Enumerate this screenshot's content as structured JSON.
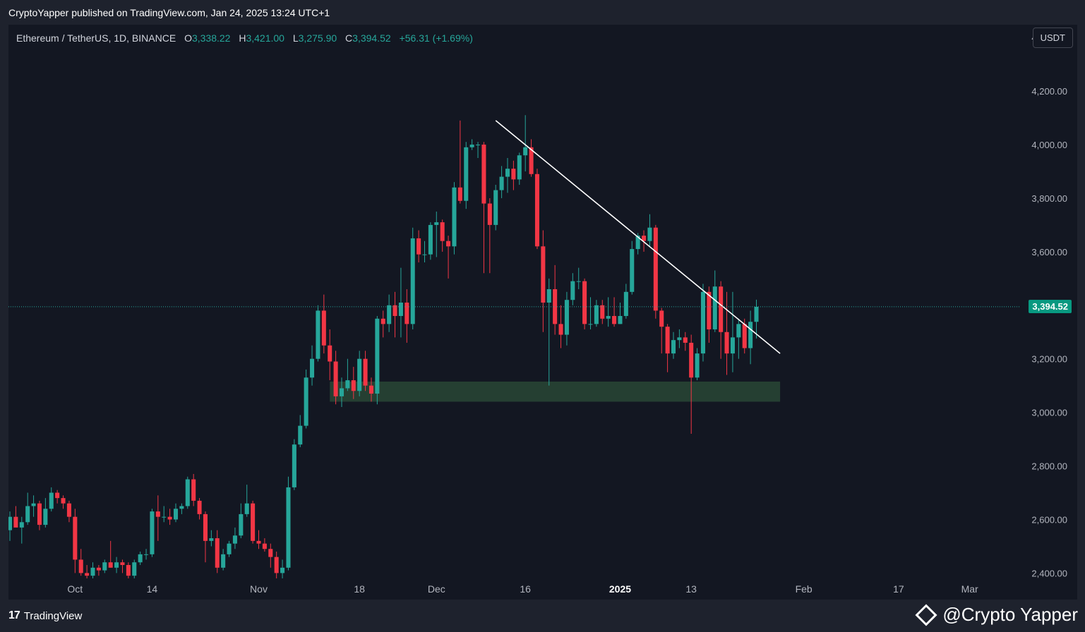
{
  "header": {
    "published": "CryptoYapper published on TradingView.com, Jan 24, 2025 13:24 UTC+1"
  },
  "legend": {
    "symbol": "Ethereum / TetherUS, 1D, BINANCE",
    "o_label": "O",
    "o_value": "3,338.22",
    "h_label": "H",
    "h_value": "3,421.00",
    "l_label": "L",
    "l_value": "3,275.90",
    "c_label": "C",
    "c_value": "3,394.52",
    "change": "+56.31 (+1.69%)"
  },
  "currency_button": "USDT",
  "footer": {
    "brand": "TradingView",
    "watermark": "@Crypto Yapper"
  },
  "colors": {
    "up": "#26a69a",
    "down": "#f23645",
    "background": "#131722",
    "zone": "#2b4a37",
    "trendline": "#ffffff"
  },
  "chart_data": {
    "type": "candlestick",
    "ylim": [
      2380,
      4440
    ],
    "yticks": [
      2400,
      2600,
      2800,
      3000,
      3200,
      3400,
      3600,
      3800,
      4000,
      4200,
      4400
    ],
    "ytick_labels": [
      "2,400.00",
      "2,600.00",
      "2,800.00",
      "3,000.00",
      "3,200.00",
      "3,400.00",
      "3,600.00",
      "3,800.00",
      "4,000.00",
      "4,200.00",
      "4,400.00"
    ],
    "xlim": [
      "2024-09-20",
      "2025-03-07"
    ],
    "xticks": [
      {
        "date": "2024-10-01",
        "label": "Oct",
        "bold": false
      },
      {
        "date": "2024-10-14",
        "label": "14",
        "bold": false
      },
      {
        "date": "2024-11-01",
        "label": "Nov",
        "bold": false
      },
      {
        "date": "2024-11-18",
        "label": "18",
        "bold": false
      },
      {
        "date": "2024-12-01",
        "label": "Dec",
        "bold": false
      },
      {
        "date": "2024-12-16",
        "label": "16",
        "bold": false
      },
      {
        "date": "2025-01-01",
        "label": "2025",
        "bold": true
      },
      {
        "date": "2025-01-13",
        "label": "13",
        "bold": false
      },
      {
        "date": "2025-02-01",
        "label": "Feb",
        "bold": false
      },
      {
        "date": "2025-02-17",
        "label": "17",
        "bold": false
      },
      {
        "date": "2025-03-01",
        "label": "Mar",
        "bold": false
      }
    ],
    "last_price": 3394.52,
    "last_price_label": "3,394.52",
    "support_zone": {
      "start": "2024-11-13",
      "end": "2025-01-28",
      "low": 3040,
      "high": 3115
    },
    "trendline": {
      "start": {
        "date": "2024-12-11",
        "price": 4090
      },
      "end": {
        "date": "2025-01-28",
        "price": 3220
      }
    },
    "candles": [
      {
        "date": "2024-09-20",
        "o": 2560,
        "h": 2630,
        "l": 2520,
        "c": 2610
      },
      {
        "date": "2024-09-21",
        "o": 2610,
        "h": 2650,
        "l": 2580,
        "c": 2570
      },
      {
        "date": "2024-09-22",
        "o": 2570,
        "h": 2610,
        "l": 2510,
        "c": 2590
      },
      {
        "date": "2024-09-23",
        "o": 2590,
        "h": 2700,
        "l": 2580,
        "c": 2650
      },
      {
        "date": "2024-09-24",
        "o": 2650,
        "h": 2690,
        "l": 2610,
        "c": 2660
      },
      {
        "date": "2024-09-25",
        "o": 2660,
        "h": 2670,
        "l": 2560,
        "c": 2580
      },
      {
        "date": "2024-09-26",
        "o": 2580,
        "h": 2680,
        "l": 2570,
        "c": 2640
      },
      {
        "date": "2024-09-27",
        "o": 2640,
        "h": 2720,
        "l": 2630,
        "c": 2700
      },
      {
        "date": "2024-09-28",
        "o": 2700,
        "h": 2710,
        "l": 2660,
        "c": 2680
      },
      {
        "date": "2024-09-29",
        "o": 2680,
        "h": 2690,
        "l": 2640,
        "c": 2660
      },
      {
        "date": "2024-09-30",
        "o": 2660,
        "h": 2670,
        "l": 2590,
        "c": 2610
      },
      {
        "date": "2024-10-01",
        "o": 2610,
        "h": 2640,
        "l": 2400,
        "c": 2450
      },
      {
        "date": "2024-10-02",
        "o": 2450,
        "h": 2490,
        "l": 2390,
        "c": 2400
      },
      {
        "date": "2024-10-03",
        "o": 2400,
        "h": 2430,
        "l": 2380,
        "c": 2390
      },
      {
        "date": "2024-10-04",
        "o": 2390,
        "h": 2440,
        "l": 2380,
        "c": 2420
      },
      {
        "date": "2024-10-05",
        "o": 2420,
        "h": 2430,
        "l": 2390,
        "c": 2410
      },
      {
        "date": "2024-10-06",
        "o": 2410,
        "h": 2450,
        "l": 2400,
        "c": 2440
      },
      {
        "date": "2024-10-07",
        "o": 2440,
        "h": 2520,
        "l": 2420,
        "c": 2420
      },
      {
        "date": "2024-10-08",
        "o": 2420,
        "h": 2460,
        "l": 2400,
        "c": 2440
      },
      {
        "date": "2024-10-09",
        "o": 2440,
        "h": 2450,
        "l": 2400,
        "c": 2430
      },
      {
        "date": "2024-10-10",
        "o": 2430,
        "h": 2440,
        "l": 2380,
        "c": 2390
      },
      {
        "date": "2024-10-11",
        "o": 2390,
        "h": 2450,
        "l": 2380,
        "c": 2440
      },
      {
        "date": "2024-10-12",
        "o": 2440,
        "h": 2480,
        "l": 2430,
        "c": 2470
      },
      {
        "date": "2024-10-13",
        "o": 2470,
        "h": 2490,
        "l": 2450,
        "c": 2470
      },
      {
        "date": "2024-10-14",
        "o": 2470,
        "h": 2640,
        "l": 2460,
        "c": 2630
      },
      {
        "date": "2024-10-15",
        "o": 2630,
        "h": 2690,
        "l": 2520,
        "c": 2610
      },
      {
        "date": "2024-10-16",
        "o": 2610,
        "h": 2650,
        "l": 2590,
        "c": 2610
      },
      {
        "date": "2024-10-17",
        "o": 2610,
        "h": 2640,
        "l": 2580,
        "c": 2600
      },
      {
        "date": "2024-10-18",
        "o": 2600,
        "h": 2660,
        "l": 2590,
        "c": 2640
      },
      {
        "date": "2024-10-19",
        "o": 2640,
        "h": 2660,
        "l": 2620,
        "c": 2650
      },
      {
        "date": "2024-10-20",
        "o": 2650,
        "h": 2760,
        "l": 2640,
        "c": 2750
      },
      {
        "date": "2024-10-21",
        "o": 2750,
        "h": 2770,
        "l": 2650,
        "c": 2670
      },
      {
        "date": "2024-10-22",
        "o": 2670,
        "h": 2680,
        "l": 2600,
        "c": 2620
      },
      {
        "date": "2024-10-23",
        "o": 2620,
        "h": 2630,
        "l": 2440,
        "c": 2520
      },
      {
        "date": "2024-10-24",
        "o": 2520,
        "h": 2560,
        "l": 2500,
        "c": 2530
      },
      {
        "date": "2024-10-25",
        "o": 2530,
        "h": 2560,
        "l": 2400,
        "c": 2420
      },
      {
        "date": "2024-10-26",
        "o": 2420,
        "h": 2490,
        "l": 2410,
        "c": 2470
      },
      {
        "date": "2024-10-27",
        "o": 2470,
        "h": 2520,
        "l": 2460,
        "c": 2510
      },
      {
        "date": "2024-10-28",
        "o": 2510,
        "h": 2570,
        "l": 2490,
        "c": 2540
      },
      {
        "date": "2024-10-29",
        "o": 2540,
        "h": 2660,
        "l": 2530,
        "c": 2620
      },
      {
        "date": "2024-10-30",
        "o": 2620,
        "h": 2730,
        "l": 2610,
        "c": 2660
      },
      {
        "date": "2024-10-31",
        "o": 2660,
        "h": 2670,
        "l": 2510,
        "c": 2520
      },
      {
        "date": "2024-11-01",
        "o": 2520,
        "h": 2560,
        "l": 2490,
        "c": 2510
      },
      {
        "date": "2024-11-02",
        "o": 2510,
        "h": 2530,
        "l": 2480,
        "c": 2490
      },
      {
        "date": "2024-11-03",
        "o": 2490,
        "h": 2510,
        "l": 2420,
        "c": 2460
      },
      {
        "date": "2024-11-04",
        "o": 2460,
        "h": 2480,
        "l": 2380,
        "c": 2400
      },
      {
        "date": "2024-11-05",
        "o": 2400,
        "h": 2450,
        "l": 2380,
        "c": 2420
      },
      {
        "date": "2024-11-06",
        "o": 2420,
        "h": 2760,
        "l": 2410,
        "c": 2720
      },
      {
        "date": "2024-11-07",
        "o": 2720,
        "h": 2900,
        "l": 2710,
        "c": 2880
      },
      {
        "date": "2024-11-08",
        "o": 2880,
        "h": 2990,
        "l": 2870,
        "c": 2950
      },
      {
        "date": "2024-11-09",
        "o": 2950,
        "h": 3160,
        "l": 2940,
        "c": 3130
      },
      {
        "date": "2024-11-10",
        "o": 3130,
        "h": 3250,
        "l": 3100,
        "c": 3200
      },
      {
        "date": "2024-11-11",
        "o": 3200,
        "h": 3400,
        "l": 3190,
        "c": 3380
      },
      {
        "date": "2024-11-12",
        "o": 3380,
        "h": 3440,
        "l": 3220,
        "c": 3250
      },
      {
        "date": "2024-11-13",
        "o": 3250,
        "h": 3310,
        "l": 3120,
        "c": 3190
      },
      {
        "date": "2024-11-14",
        "o": 3190,
        "h": 3230,
        "l": 3030,
        "c": 3060
      },
      {
        "date": "2024-11-15",
        "o": 3060,
        "h": 3130,
        "l": 3020,
        "c": 3090
      },
      {
        "date": "2024-11-16",
        "o": 3090,
        "h": 3200,
        "l": 3080,
        "c": 3120
      },
      {
        "date": "2024-11-17",
        "o": 3120,
        "h": 3170,
        "l": 3050,
        "c": 3080
      },
      {
        "date": "2024-11-18",
        "o": 3080,
        "h": 3230,
        "l": 3060,
        "c": 3200
      },
      {
        "date": "2024-11-19",
        "o": 3200,
        "h": 3230,
        "l": 3080,
        "c": 3100
      },
      {
        "date": "2024-11-20",
        "o": 3100,
        "h": 3130,
        "l": 3040,
        "c": 3070
      },
      {
        "date": "2024-11-21",
        "o": 3070,
        "h": 3360,
        "l": 3030,
        "c": 3350
      },
      {
        "date": "2024-11-22",
        "o": 3350,
        "h": 3380,
        "l": 3280,
        "c": 3330
      },
      {
        "date": "2024-11-23",
        "o": 3330,
        "h": 3440,
        "l": 3300,
        "c": 3400
      },
      {
        "date": "2024-11-24",
        "o": 3400,
        "h": 3450,
        "l": 3280,
        "c": 3360
      },
      {
        "date": "2024-11-25",
        "o": 3360,
        "h": 3540,
        "l": 3280,
        "c": 3410
      },
      {
        "date": "2024-11-26",
        "o": 3410,
        "h": 3460,
        "l": 3260,
        "c": 3330
      },
      {
        "date": "2024-11-27",
        "o": 3330,
        "h": 3690,
        "l": 3310,
        "c": 3650
      },
      {
        "date": "2024-11-28",
        "o": 3650,
        "h": 3680,
        "l": 3560,
        "c": 3590
      },
      {
        "date": "2024-11-29",
        "o": 3590,
        "h": 3640,
        "l": 3560,
        "c": 3590
      },
      {
        "date": "2024-11-30",
        "o": 3590,
        "h": 3710,
        "l": 3570,
        "c": 3700
      },
      {
        "date": "2024-12-01",
        "o": 3700,
        "h": 3750,
        "l": 3580,
        "c": 3710
      },
      {
        "date": "2024-12-02",
        "o": 3710,
        "h": 3720,
        "l": 3600,
        "c": 3640
      },
      {
        "date": "2024-12-03",
        "o": 3640,
        "h": 3660,
        "l": 3500,
        "c": 3620
      },
      {
        "date": "2024-12-04",
        "o": 3620,
        "h": 3860,
        "l": 3590,
        "c": 3840
      },
      {
        "date": "2024-12-05",
        "o": 3840,
        "h": 4090,
        "l": 3780,
        "c": 3790
      },
      {
        "date": "2024-12-06",
        "o": 3790,
        "h": 4010,
        "l": 3760,
        "c": 3990
      },
      {
        "date": "2024-12-07",
        "o": 3990,
        "h": 4020,
        "l": 3980,
        "c": 4000
      },
      {
        "date": "2024-12-08",
        "o": 4000,
        "h": 4010,
        "l": 3950,
        "c": 4000
      },
      {
        "date": "2024-12-09",
        "o": 4000,
        "h": 4010,
        "l": 3520,
        "c": 3780
      },
      {
        "date": "2024-12-10",
        "o": 3780,
        "h": 3800,
        "l": 3520,
        "c": 3700
      },
      {
        "date": "2024-12-11",
        "o": 3700,
        "h": 3850,
        "l": 3680,
        "c": 3830
      },
      {
        "date": "2024-12-12",
        "o": 3830,
        "h": 3920,
        "l": 3800,
        "c": 3880
      },
      {
        "date": "2024-12-13",
        "o": 3880,
        "h": 3950,
        "l": 3820,
        "c": 3910
      },
      {
        "date": "2024-12-14",
        "o": 3910,
        "h": 3940,
        "l": 3830,
        "c": 3870
      },
      {
        "date": "2024-12-15",
        "o": 3870,
        "h": 3970,
        "l": 3850,
        "c": 3960
      },
      {
        "date": "2024-12-16",
        "o": 3960,
        "h": 4110,
        "l": 3900,
        "c": 3990
      },
      {
        "date": "2024-12-17",
        "o": 3990,
        "h": 4020,
        "l": 3880,
        "c": 3890
      },
      {
        "date": "2024-12-18",
        "o": 3890,
        "h": 3910,
        "l": 3610,
        "c": 3620
      },
      {
        "date": "2024-12-19",
        "o": 3620,
        "h": 3680,
        "l": 3300,
        "c": 3410
      },
      {
        "date": "2024-12-20",
        "o": 3410,
        "h": 3500,
        "l": 3100,
        "c": 3460
      },
      {
        "date": "2024-12-21",
        "o": 3460,
        "h": 3550,
        "l": 3290,
        "c": 3330
      },
      {
        "date": "2024-12-22",
        "o": 3330,
        "h": 3400,
        "l": 3240,
        "c": 3290
      },
      {
        "date": "2024-12-23",
        "o": 3290,
        "h": 3450,
        "l": 3250,
        "c": 3420
      },
      {
        "date": "2024-12-24",
        "o": 3420,
        "h": 3520,
        "l": 3400,
        "c": 3490
      },
      {
        "date": "2024-12-25",
        "o": 3490,
        "h": 3540,
        "l": 3460,
        "c": 3490
      },
      {
        "date": "2024-12-26",
        "o": 3490,
        "h": 3500,
        "l": 3310,
        "c": 3330
      },
      {
        "date": "2024-12-27",
        "o": 3330,
        "h": 3430,
        "l": 3310,
        "c": 3330
      },
      {
        "date": "2024-12-28",
        "o": 3330,
        "h": 3420,
        "l": 3320,
        "c": 3400
      },
      {
        "date": "2024-12-29",
        "o": 3400,
        "h": 3420,
        "l": 3330,
        "c": 3350
      },
      {
        "date": "2024-12-30",
        "o": 3350,
        "h": 3430,
        "l": 3320,
        "c": 3360
      },
      {
        "date": "2024-12-31",
        "o": 3360,
        "h": 3430,
        "l": 3320,
        "c": 3330
      },
      {
        "date": "2025-01-01",
        "o": 3330,
        "h": 3410,
        "l": 3330,
        "c": 3360
      },
      {
        "date": "2025-01-02",
        "o": 3360,
        "h": 3480,
        "l": 3350,
        "c": 3450
      },
      {
        "date": "2025-01-03",
        "o": 3450,
        "h": 3640,
        "l": 3440,
        "c": 3610
      },
      {
        "date": "2025-01-04",
        "o": 3610,
        "h": 3670,
        "l": 3590,
        "c": 3660
      },
      {
        "date": "2025-01-05",
        "o": 3660,
        "h": 3680,
        "l": 3600,
        "c": 3640
      },
      {
        "date": "2025-01-06",
        "o": 3640,
        "h": 3740,
        "l": 3620,
        "c": 3690
      },
      {
        "date": "2025-01-07",
        "o": 3690,
        "h": 3700,
        "l": 3350,
        "c": 3380
      },
      {
        "date": "2025-01-08",
        "o": 3380,
        "h": 3390,
        "l": 3220,
        "c": 3320
      },
      {
        "date": "2025-01-09",
        "o": 3320,
        "h": 3330,
        "l": 3150,
        "c": 3220
      },
      {
        "date": "2025-01-10",
        "o": 3220,
        "h": 3300,
        "l": 3200,
        "c": 3270
      },
      {
        "date": "2025-01-11",
        "o": 3270,
        "h": 3310,
        "l": 3240,
        "c": 3280
      },
      {
        "date": "2025-01-12",
        "o": 3280,
        "h": 3300,
        "l": 3230,
        "c": 3260
      },
      {
        "date": "2025-01-13",
        "o": 3260,
        "h": 3290,
        "l": 2920,
        "c": 3130
      },
      {
        "date": "2025-01-14",
        "o": 3130,
        "h": 3240,
        "l": 3120,
        "c": 3220
      },
      {
        "date": "2025-01-15",
        "o": 3220,
        "h": 3480,
        "l": 3190,
        "c": 3450
      },
      {
        "date": "2025-01-16",
        "o": 3450,
        "h": 3470,
        "l": 3260,
        "c": 3310
      },
      {
        "date": "2025-01-17",
        "o": 3310,
        "h": 3530,
        "l": 3300,
        "c": 3470
      },
      {
        "date": "2025-01-18",
        "o": 3470,
        "h": 3490,
        "l": 3200,
        "c": 3300
      },
      {
        "date": "2025-01-19",
        "o": 3300,
        "h": 3450,
        "l": 3140,
        "c": 3220
      },
      {
        "date": "2025-01-20",
        "o": 3220,
        "h": 3450,
        "l": 3150,
        "c": 3280
      },
      {
        "date": "2025-01-21",
        "o": 3280,
        "h": 3350,
        "l": 3200,
        "c": 3330
      },
      {
        "date": "2025-01-22",
        "o": 3330,
        "h": 3350,
        "l": 3220,
        "c": 3240
      },
      {
        "date": "2025-01-23",
        "o": 3240,
        "h": 3380,
        "l": 3180,
        "c": 3338.22
      },
      {
        "date": "2025-01-24",
        "o": 3338.22,
        "h": 3421.0,
        "l": 3275.9,
        "c": 3394.52
      }
    ]
  }
}
